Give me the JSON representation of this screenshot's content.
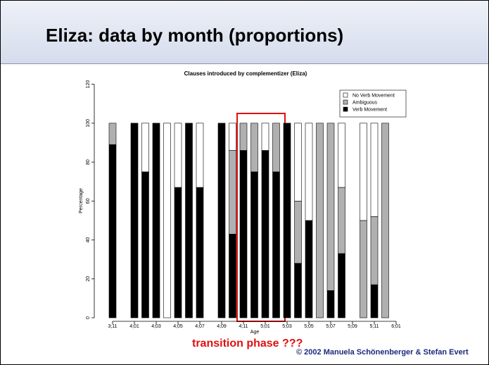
{
  "slide": {
    "title": "Eliza: data by month (proportions)",
    "annotation": "transition phase ???",
    "footer": "© 2002 Manuela Schönenberger & Stefan Evert"
  },
  "chart_data": {
    "type": "stacked-bar",
    "title": "Clauses introduced by complementizer (Eliza)",
    "x_label": "Age",
    "y_label": "Percentage",
    "categories": [
      "3;11",
      null,
      "4;01",
      null,
      "4;03",
      null,
      "4;05",
      null,
      "4;07",
      null,
      "4;09",
      null,
      "4;11",
      null,
      "5;01",
      null,
      "5;03",
      null,
      "5;05",
      null,
      "5;07",
      null,
      "5;09",
      null,
      "5;11",
      null,
      "6;01"
    ],
    "series": [
      {
        "name": "No Verb Movement",
        "color": "#ffffff",
        "values": [
          0,
          null,
          0,
          25,
          0,
          100,
          33,
          0,
          33,
          null,
          0,
          14,
          0,
          0,
          14,
          0,
          0,
          40,
          50,
          0,
          0,
          33,
          null,
          50,
          48,
          0,
          null
        ]
      },
      {
        "name": "Ambiguous",
        "color": "#b0b0b0",
        "values": [
          11,
          null,
          0,
          0,
          0,
          0,
          0,
          0,
          0,
          null,
          0,
          43,
          14,
          25,
          0,
          25,
          0,
          32,
          0,
          100,
          86,
          34,
          null,
          50,
          35,
          100,
          null
        ]
      },
      {
        "name": "Verb Movement",
        "color": "#000000",
        "values": [
          89,
          null,
          100,
          75,
          100,
          0,
          67,
          100,
          67,
          null,
          100,
          43,
          86,
          75,
          86,
          75,
          100,
          28,
          50,
          0,
          14,
          33,
          null,
          0,
          17,
          0,
          null
        ]
      }
    ],
    "ylim": [
      0,
      120
    ],
    "yticks": [
      0,
      20,
      40,
      60,
      80,
      100,
      120
    ],
    "legend": "top-right"
  }
}
